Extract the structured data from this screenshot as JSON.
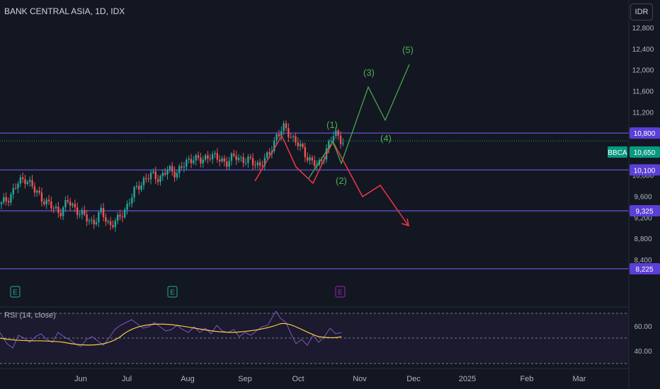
{
  "header": {
    "title": "BANK CENTRAL ASIA, 1D, IDX",
    "currency": "IDR"
  },
  "rsi": {
    "label": "RSI (14, close)"
  },
  "chart_data": {
    "type": "candlestick",
    "symbol": "BBCA",
    "x_labels": [
      "Jun",
      "Jul",
      "Aug",
      "Sep",
      "Oct",
      "Nov",
      "Dec",
      "2025",
      "Feb",
      "Mar"
    ],
    "y_ticks": [
      "12,800",
      "12,400",
      "12,000",
      "11,600",
      "11,200",
      "10,800",
      "10,400",
      "10,000",
      "9,600",
      "9,200",
      "8,800",
      "8,400"
    ],
    "y_range": [
      8000,
      13000
    ],
    "horizontal_levels": [
      {
        "value": 10800,
        "label": "10,800"
      },
      {
        "value": 10100,
        "label": "10,100"
      },
      {
        "value": 9325,
        "label": "9,325"
      },
      {
        "value": 8225,
        "label": "8,225"
      }
    ],
    "last_price": {
      "symbol": "BBCA",
      "value": 10650,
      "label": "10,650"
    },
    "close_trend": [
      9450,
      9600,
      9850,
      9950,
      9700,
      9550,
      9400,
      9300,
      9500,
      9350,
      9200,
      9100,
      9300,
      9050,
      9150,
      9400,
      9700,
      9900,
      10000,
      9950,
      10100,
      10050,
      10200,
      10350,
      10250,
      10400,
      10300,
      10250,
      10350,
      10300,
      10250,
      10200,
      10350,
      10750,
      10900,
      10700,
      10500,
      10300,
      10150,
      10500,
      10800,
      10650
    ],
    "wave_labels": [
      "(1)",
      "(2)",
      "(3)",
      "(4)",
      "(5)"
    ],
    "earnings_labels": [
      "E",
      "E",
      "E"
    ],
    "rsi_ticks": [
      "60.00",
      "40.00"
    ],
    "rsi_range": [
      20,
      80
    ]
  }
}
